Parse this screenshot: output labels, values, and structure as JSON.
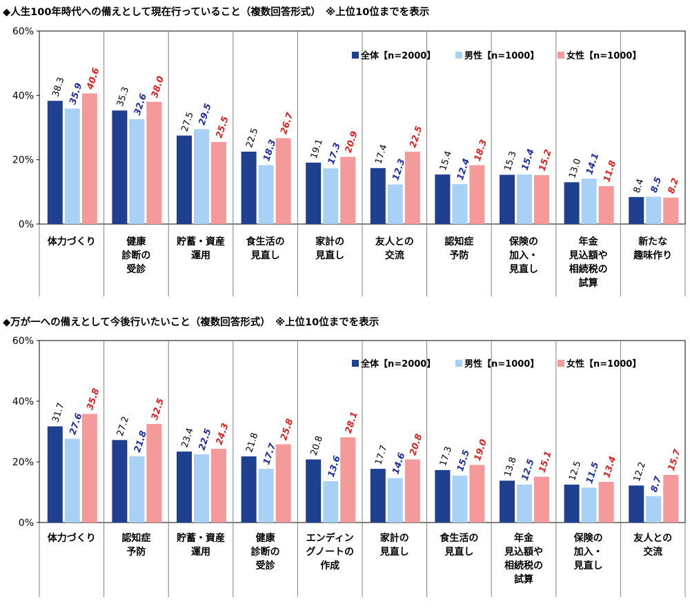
{
  "chart_data": [
    {
      "type": "bar",
      "title": "◆人生100年時代への備えとして現在行っていること（複数回答形式）　※上位10位までを表示",
      "ylim": [
        0,
        60
      ],
      "yticks": [
        "0%",
        "20%",
        "40%",
        "60%"
      ],
      "grid": false,
      "legend_position": "top-right",
      "categories": [
        [
          "体力づくり"
        ],
        [
          "健康",
          "診断の",
          "受診"
        ],
        [
          "貯蓄・資産",
          "運用"
        ],
        [
          "食生活の",
          "見直し"
        ],
        [
          "家計の",
          "見直し"
        ],
        [
          "友人との",
          "交流"
        ],
        [
          "認知症",
          "予防"
        ],
        [
          "保険の",
          "加入・",
          "見直し"
        ],
        [
          "年金",
          "見込額や",
          "相続税の",
          "試算"
        ],
        [
          "新たな",
          "趣味作り"
        ]
      ],
      "series": [
        {
          "name": "全体【n=2000】",
          "color": "#1f3f8f",
          "label_color": "#000000",
          "values": [
            38.3,
            35.3,
            27.5,
            22.5,
            19.1,
            17.4,
            15.4,
            15.3,
            13.0,
            8.4
          ],
          "labels": [
            "38.3",
            "35.3",
            "27.5",
            "22.5",
            "19.1",
            "17.4",
            "15.4",
            "15.3",
            "13.0",
            "8.4"
          ]
        },
        {
          "name": "男性【n=1000】",
          "color": "#a9d1f5",
          "label_color": "#1f2fa0",
          "values": [
            35.9,
            32.6,
            29.5,
            18.3,
            17.3,
            12.3,
            12.4,
            15.4,
            14.1,
            8.5
          ],
          "labels": [
            "35.9",
            "32.6",
            "29.5",
            "18.3",
            "17.3",
            "12.3",
            "12.4",
            "15.4",
            "14.1",
            "8.5"
          ]
        },
        {
          "name": "女性【n=1000】",
          "color": "#f59a9a",
          "label_color": "#e02020",
          "values": [
            40.6,
            38.0,
            25.5,
            26.7,
            20.9,
            22.5,
            18.3,
            15.2,
            11.8,
            8.2
          ],
          "labels": [
            "40.6",
            "38.0",
            "25.5",
            "26.7",
            "20.9",
            "22.5",
            "18.3",
            "15.2",
            "11.8",
            "8.2"
          ]
        }
      ]
    },
    {
      "type": "bar",
      "title": "◆万が一への備えとして今後行いたいこと（複数回答形式）　※上位10位までを表示",
      "ylim": [
        0,
        60
      ],
      "yticks": [
        "0%",
        "20%",
        "40%",
        "60%"
      ],
      "grid": false,
      "legend_position": "top-right",
      "categories": [
        [
          "体力づくり"
        ],
        [
          "認知症",
          "予防"
        ],
        [
          "貯蓄・資産",
          "運用"
        ],
        [
          "健康",
          "診断の",
          "受診"
        ],
        [
          "エンディン",
          "グノートの",
          "作成"
        ],
        [
          "家計の",
          "見直し"
        ],
        [
          "食生活の",
          "見直し"
        ],
        [
          "年金",
          "見込額や",
          "相続税の",
          "試算"
        ],
        [
          "保険の",
          "加入・",
          "見直し"
        ],
        [
          "友人との",
          "交流"
        ]
      ],
      "series": [
        {
          "name": "全体【n=2000】",
          "color": "#1f3f8f",
          "label_color": "#000000",
          "values": [
            31.7,
            27.2,
            23.4,
            21.8,
            20.8,
            17.7,
            17.3,
            13.8,
            12.5,
            12.2
          ],
          "labels": [
            "31.7",
            "27.2",
            "23.4",
            "21.8",
            "20.8",
            "17.7",
            "17.3",
            "13.8",
            "12.5",
            "12.2"
          ]
        },
        {
          "name": "男性【n=1000】",
          "color": "#a9d1f5",
          "label_color": "#1f2fa0",
          "values": [
            27.6,
            21.8,
            22.5,
            17.7,
            13.6,
            14.6,
            15.5,
            12.5,
            11.5,
            8.7
          ],
          "labels": [
            "27.6",
            "21.8",
            "22.5",
            "17.7",
            "13.6",
            "14.6",
            "15.5",
            "12.5",
            "11.5",
            "8.7"
          ]
        },
        {
          "name": "女性【n=1000】",
          "color": "#f59a9a",
          "label_color": "#e02020",
          "values": [
            35.8,
            32.5,
            24.3,
            25.8,
            28.1,
            20.8,
            19.0,
            15.1,
            13.4,
            15.7
          ],
          "labels": [
            "35.8",
            "32.5",
            "24.3",
            "25.8",
            "28.1",
            "20.8",
            "19.0",
            "15.1",
            "13.4",
            "15.7"
          ]
        }
      ]
    }
  ]
}
